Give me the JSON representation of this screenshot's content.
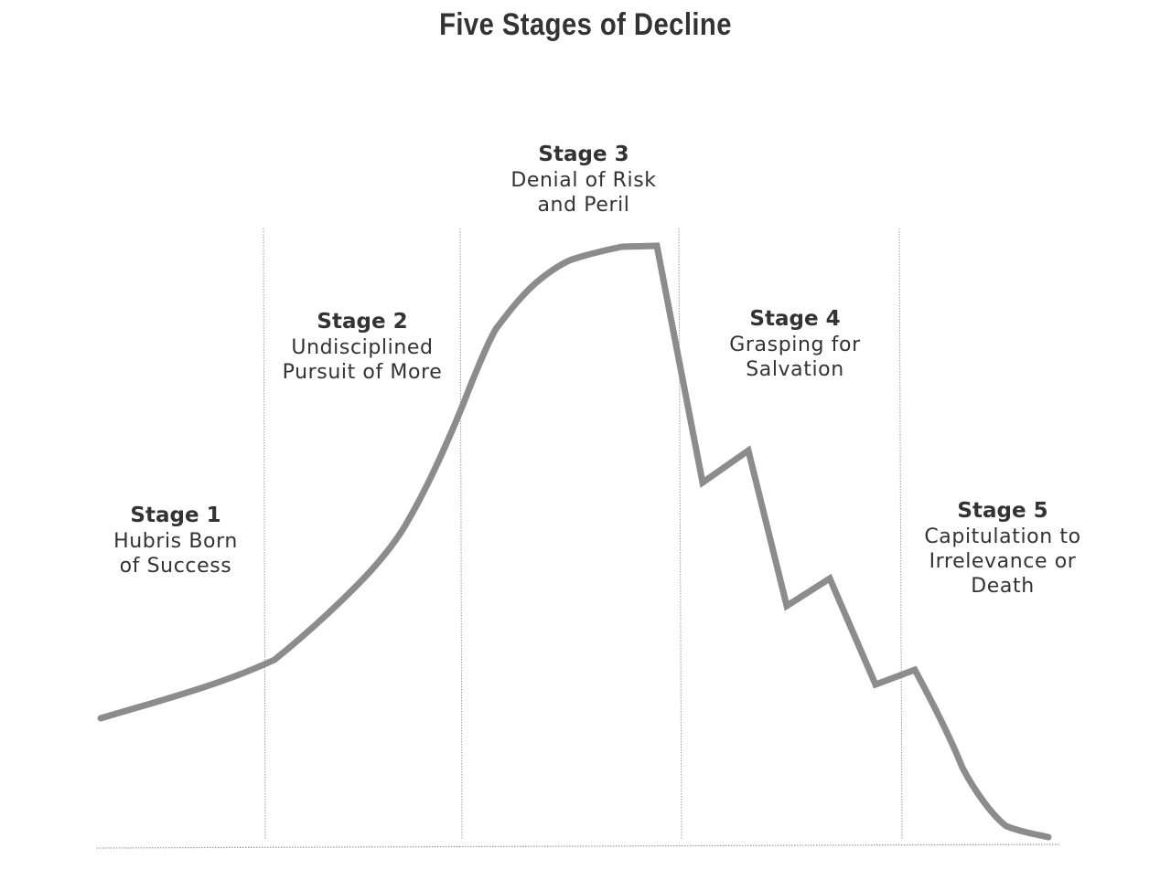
{
  "title": "Five Stages of Decline",
  "stages": [
    {
      "name": "Stage 1",
      "description": "Hubris Born\nof Success"
    },
    {
      "name": "Stage 2",
      "description": "Undisciplined\nPursuit of More"
    },
    {
      "name": "Stage 3",
      "description": "Denial of Risk\nand Peril"
    },
    {
      "name": "Stage 4",
      "description": "Grasping for\nSalvation"
    },
    {
      "name": "Stage 5",
      "description": "Capitulation to\nIrrelevance or\nDeath"
    }
  ],
  "colors": {
    "curve": "#8c8c8c",
    "divider": "#9a9a9a",
    "text": "#333333"
  }
}
